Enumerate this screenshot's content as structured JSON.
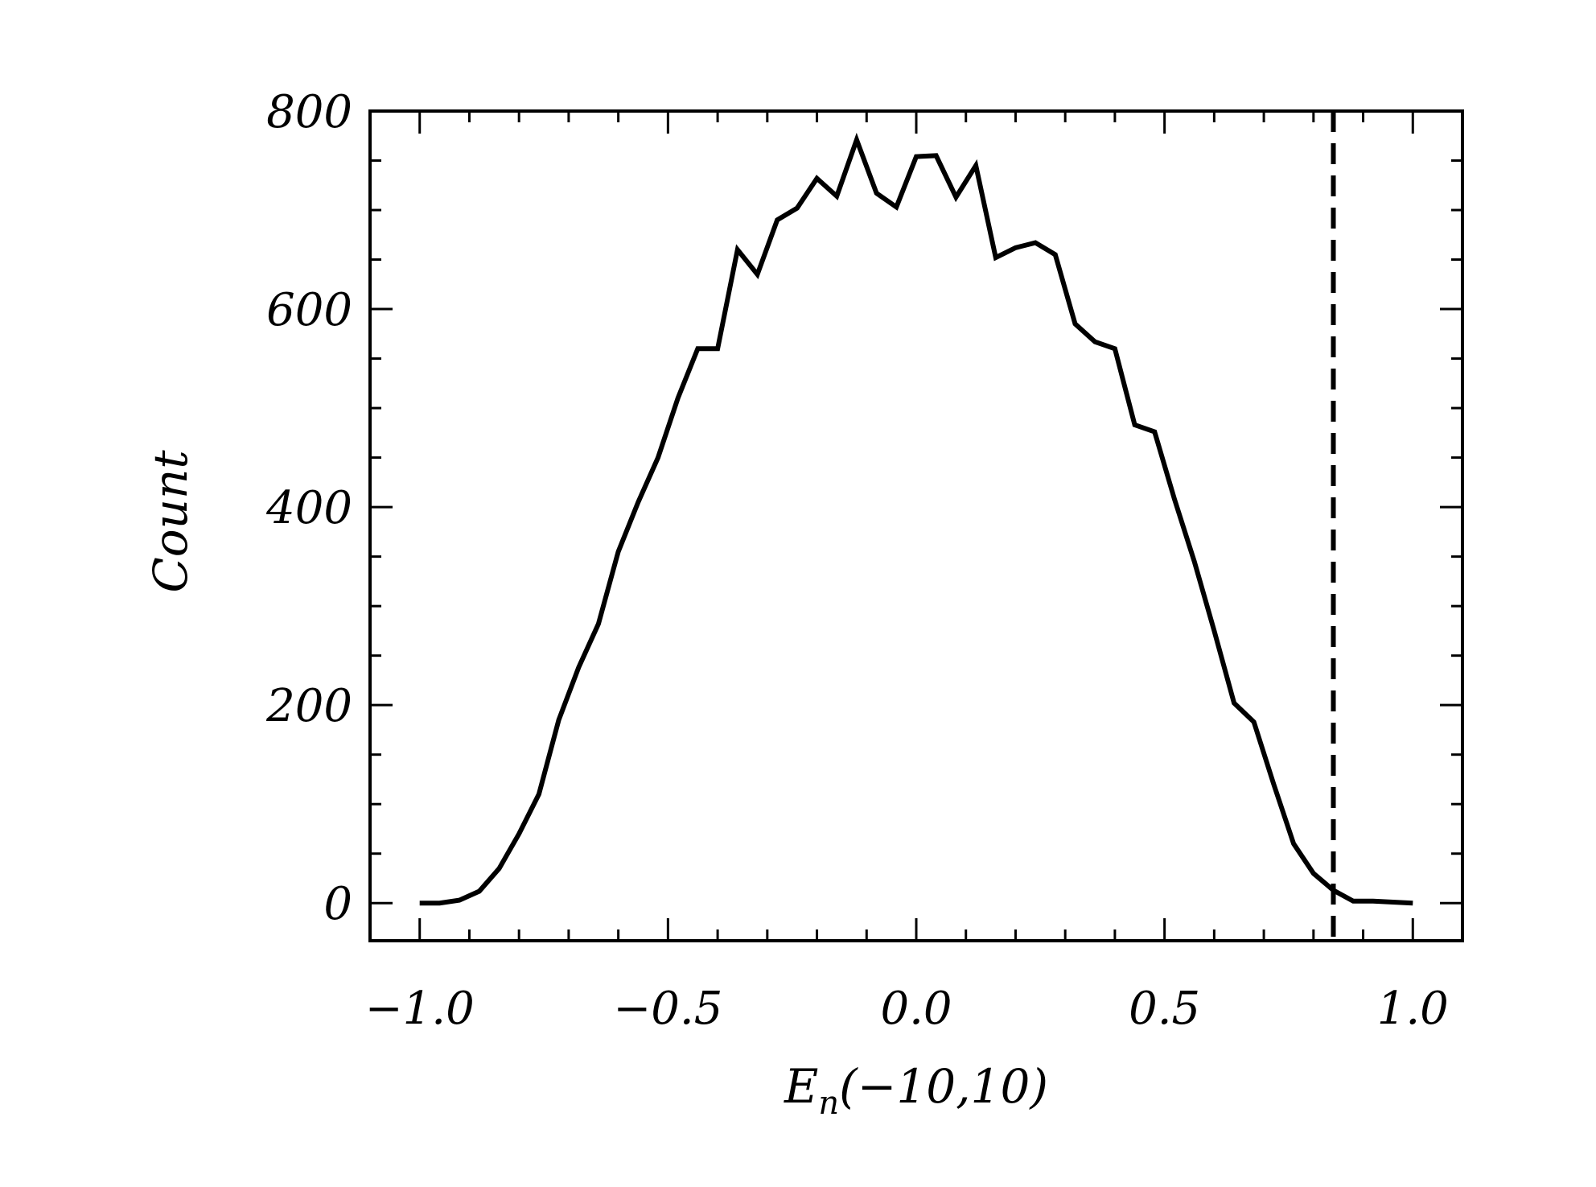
{
  "chart_data": {
    "type": "line",
    "title": "",
    "xlabel": {
      "main": "E",
      "subscript": "n",
      "suffix": "(−10,10)"
    },
    "ylabel": "Count",
    "xlim": [
      -1.1,
      1.1
    ],
    "ylim": [
      -38,
      800
    ],
    "x_ticks": [
      {
        "value": -1.0,
        "label": "−1.0"
      },
      {
        "value": -0.5,
        "label": "−0.5"
      },
      {
        "value": 0.0,
        "label": "0.0"
      },
      {
        "value": 0.5,
        "label": "0.5"
      },
      {
        "value": 1.0,
        "label": "1.0"
      }
    ],
    "y_ticks": [
      {
        "value": 0,
        "label": "0"
      },
      {
        "value": 200,
        "label": "200"
      },
      {
        "value": 400,
        "label": "400"
      },
      {
        "value": 600,
        "label": "600"
      },
      {
        "value": 800,
        "label": "800"
      }
    ],
    "x_minor_step": 0.1,
    "y_minor_step": 50,
    "grid": false,
    "line_color": "#000000",
    "series": [
      {
        "x": [
          -1.0,
          -0.96,
          -0.92,
          -0.88,
          -0.84,
          -0.8,
          -0.76,
          -0.72,
          -0.68,
          -0.64,
          -0.6,
          -0.56,
          -0.52,
          -0.48,
          -0.44,
          -0.4,
          -0.36,
          -0.32,
          -0.28,
          -0.24,
          -0.2,
          -0.16,
          -0.12,
          -0.08,
          -0.04,
          0.0,
          0.04,
          0.08,
          0.12,
          0.16,
          0.2,
          0.24,
          0.28,
          0.32,
          0.36,
          0.4,
          0.44,
          0.48,
          0.52,
          0.56,
          0.6,
          0.64,
          0.68,
          0.72,
          0.76,
          0.8,
          0.84,
          0.88,
          0.92,
          0.96,
          1.0
        ],
        "values": [
          0,
          0,
          3,
          12,
          35,
          70,
          110,
          185,
          238,
          282,
          355,
          405,
          450,
          510,
          560,
          560,
          660,
          635,
          690,
          702,
          732,
          714,
          771,
          717,
          703,
          754,
          755,
          713,
          745,
          652,
          662,
          667,
          655,
          585,
          567,
          560,
          483,
          476,
          408,
          345,
          275,
          202,
          183,
          120,
          60,
          30,
          13,
          2,
          2,
          1,
          0
        ]
      }
    ],
    "reference_line": {
      "x": 0.84,
      "style": "dashed"
    }
  }
}
